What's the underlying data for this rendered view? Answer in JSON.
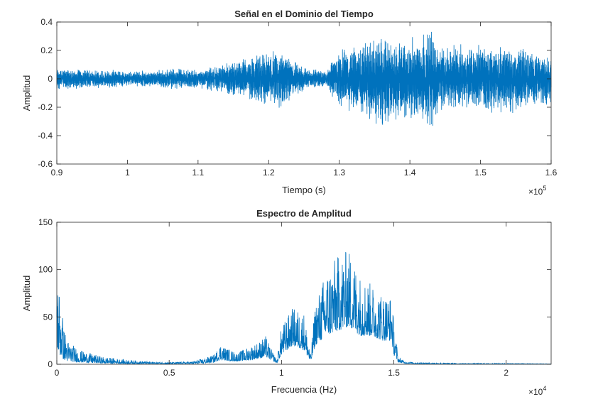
{
  "chart_data": [
    {
      "type": "line",
      "title": "Señal en el Dominio del Tiempo",
      "xlabel": "Tiempo (s)",
      "ylabel": "Amplitud",
      "x_exponent_base": "×10",
      "x_exponent_power": "5",
      "xlim": [
        0.9,
        1.6
      ],
      "ylim": [
        -0.6,
        0.4
      ],
      "x_ticks": [
        "0.9",
        "1",
        "1.1",
        "1.2",
        "1.3",
        "1.4",
        "1.5",
        "1.6"
      ],
      "y_ticks": [
        "-0.6",
        "-0.4",
        "-0.2",
        "0",
        "0.2",
        "0.4"
      ],
      "series_color": "#0072BD",
      "envelope": {
        "x": [
          0.9,
          0.95,
          1.0,
          1.04,
          1.06,
          1.1,
          1.13,
          1.15,
          1.18,
          1.2,
          1.22,
          1.25,
          1.28,
          1.3,
          1.32,
          1.34,
          1.36,
          1.38,
          1.4,
          1.42,
          1.43,
          1.44,
          1.47,
          1.5,
          1.53,
          1.56,
          1.6
        ],
        "upper": [
          0.08,
          0.07,
          0.06,
          0.06,
          0.08,
          0.07,
          0.1,
          0.13,
          0.18,
          0.2,
          0.21,
          0.08,
          0.06,
          0.22,
          0.25,
          0.28,
          0.33,
          0.3,
          0.3,
          0.35,
          0.39,
          0.24,
          0.25,
          0.26,
          0.24,
          0.24,
          0.16
        ],
        "lower": [
          -0.08,
          -0.07,
          -0.06,
          -0.06,
          -0.08,
          -0.07,
          -0.1,
          -0.13,
          -0.17,
          -0.2,
          -0.21,
          -0.08,
          -0.06,
          -0.22,
          -0.25,
          -0.3,
          -0.36,
          -0.3,
          -0.3,
          -0.37,
          -0.4,
          -0.25,
          -0.25,
          -0.25,
          -0.26,
          -0.24,
          -0.2
        ]
      }
    },
    {
      "type": "line",
      "title": "Espectro de Amplitud",
      "xlabel": "Frecuencia (Hz)",
      "ylabel": "Amplitud",
      "x_exponent_base": "×10",
      "x_exponent_power": "4",
      "xlim": [
        0,
        2.2
      ],
      "ylim": [
        0,
        150
      ],
      "x_ticks": [
        "0",
        "0.5",
        "1",
        "1.5",
        "2"
      ],
      "y_ticks": [
        "0",
        "50",
        "100",
        "150"
      ],
      "series_color": "#0072BD",
      "envelope": {
        "x": [
          0,
          0.01,
          0.02,
          0.03,
          0.05,
          0.1,
          0.2,
          0.3,
          0.4,
          0.5,
          0.6,
          0.65,
          0.7,
          0.73,
          0.75,
          0.8,
          0.85,
          0.9,
          0.93,
          0.95,
          0.98,
          1.0,
          1.05,
          1.1,
          1.13,
          1.15,
          1.2,
          1.25,
          1.3,
          1.35,
          1.4,
          1.45,
          1.49,
          1.5,
          1.52,
          1.55,
          1.6,
          1.8,
          2.0,
          2.2
        ],
        "peak": [
          100,
          85,
          70,
          40,
          25,
          15,
          8,
          5,
          3,
          2,
          3,
          6,
          10,
          22,
          18,
          12,
          18,
          24,
          30,
          18,
          5,
          40,
          60,
          55,
          10,
          65,
          100,
          115,
          122,
          95,
          85,
          75,
          72,
          45,
          8,
          3,
          2,
          1,
          1,
          0.5
        ],
        "base": [
          20,
          10,
          8,
          5,
          3,
          2,
          1,
          0.5,
          0.5,
          0.5,
          0.5,
          1,
          2,
          5,
          4,
          3,
          4,
          6,
          8,
          5,
          1,
          10,
          20,
          15,
          2,
          20,
          30,
          35,
          40,
          30,
          30,
          25,
          25,
          10,
          2,
          1,
          0.5,
          0.2,
          0.2,
          0.1
        ]
      }
    }
  ]
}
